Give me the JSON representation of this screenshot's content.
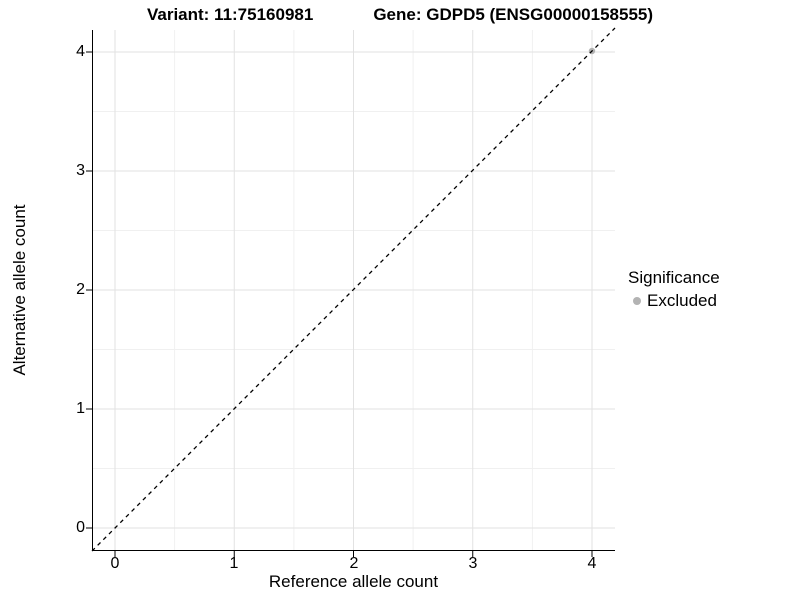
{
  "title": {
    "variant": "Variant: 11:75160981",
    "gene": "Gene: GDPD5 (ENSG00000158555)"
  },
  "chart_data": {
    "type": "scatter",
    "title": "Variant: 11:75160981   Gene: GDPD5 (ENSG00000158555)",
    "xlabel": "Reference allele count",
    "ylabel": "Alternative allele count",
    "xlim": [
      -0.2,
      4.2
    ],
    "ylim": [
      -0.2,
      4.2
    ],
    "x_ticks": [
      "0",
      "1",
      "2",
      "3",
      "4"
    ],
    "y_ticks": [
      "0",
      "1",
      "2",
      "3",
      "4"
    ],
    "grid": {
      "major_every": 1,
      "minor_every": 0.5,
      "major_color": "#e2e2e2",
      "minor_color": "#f0f0f0"
    },
    "reference_line": {
      "kind": "diagonal y=x",
      "style": "dashed",
      "color": "#000000"
    },
    "series": [
      {
        "name": "Excluded",
        "color": "#b3b3b3",
        "points": [
          {
            "x": 4,
            "y": 4
          }
        ]
      }
    ],
    "legend": {
      "position": "right",
      "title": "Significance",
      "items": [
        {
          "label": "Excluded",
          "color": "#b3b3b3"
        }
      ]
    }
  }
}
